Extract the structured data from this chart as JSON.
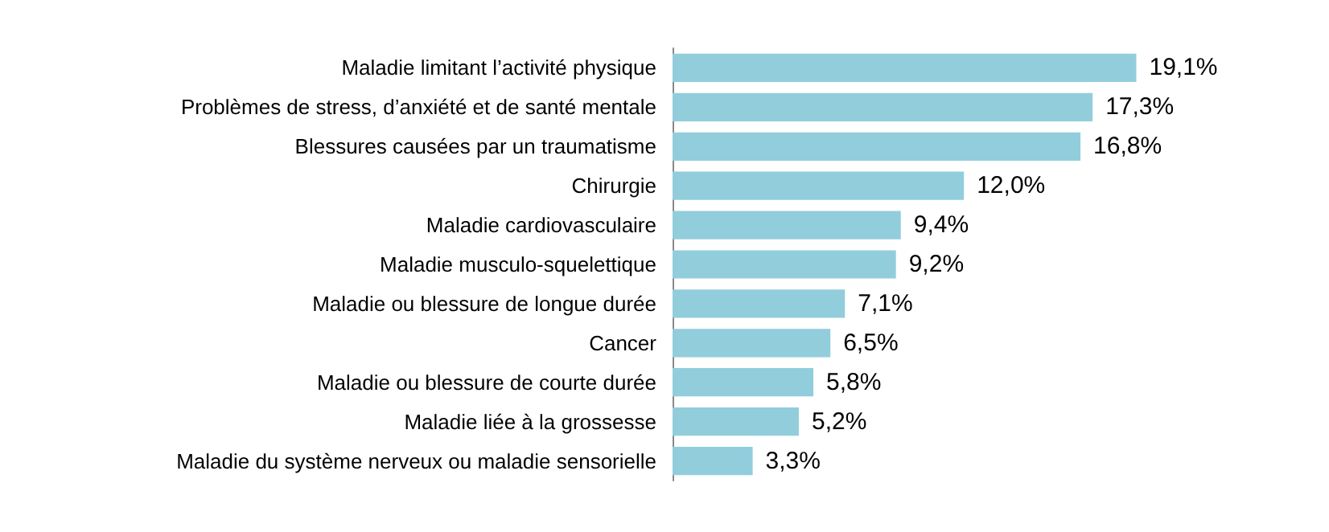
{
  "chart_data": {
    "type": "bar",
    "orientation": "horizontal",
    "categories": [
      "Maladie limitant l’activité physique",
      "Problèmes de stress, d’anxiété et de santé mentale",
      "Blessures causées par un traumatisme",
      "Chirurgie",
      "Maladie cardiovasculaire",
      "Maladie musculo-squelettique",
      "Maladie ou blessure de longue durée",
      "Cancer",
      "Maladie ou blessure de courte durée",
      "Maladie liée à la grossesse",
      "Maladie du système nerveux ou maladie sensorielle"
    ],
    "values": [
      19.1,
      17.3,
      16.8,
      12.0,
      9.4,
      9.2,
      7.1,
      6.5,
      5.8,
      5.2,
      3.3
    ],
    "value_labels": [
      "19,1%",
      "17,3%",
      "16,8%",
      "12,0%",
      "9,4%",
      "9,2%",
      "7,1%",
      "6,5%",
      "5,8%",
      "5,2%",
      "3,3%"
    ],
    "color": "#92cddc",
    "grid": false
  }
}
